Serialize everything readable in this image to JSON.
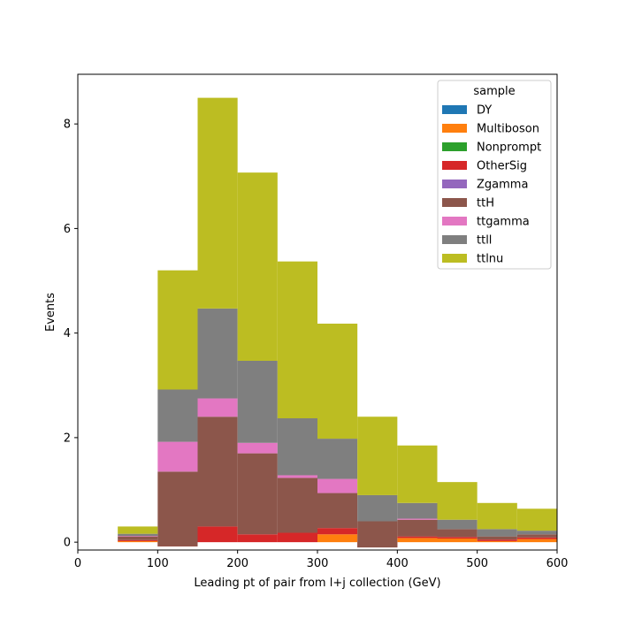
{
  "chart_data": {
    "type": "bar",
    "stacked": true,
    "histogram": true,
    "xlabel": "Leading pt of pair from l+j collection (GeV)",
    "ylabel": "Events",
    "xlim": [
      0,
      600
    ],
    "ylim": [
      -0.15,
      8.95
    ],
    "x_ticks": [
      0,
      100,
      200,
      300,
      400,
      500,
      600
    ],
    "y_ticks": [
      0,
      2,
      4,
      6,
      8
    ],
    "bin_edges": [
      50,
      100,
      150,
      200,
      250,
      300,
      350,
      400,
      450,
      500,
      550,
      600
    ],
    "legend": {
      "title": "sample",
      "placement": "top-right"
    },
    "series": [
      {
        "name": "DY",
        "color": "#1f77b4",
        "values": [
          0,
          0,
          0,
          0,
          0,
          0,
          0,
          0,
          0,
          0,
          0
        ]
      },
      {
        "name": "Multiboson",
        "color": "#ff7f0e",
        "values": [
          0.02,
          0.0,
          0.0,
          0.0,
          0.0,
          0.15,
          0.0,
          0.08,
          0.07,
          0.02,
          0.06
        ]
      },
      {
        "name": "Nonprompt",
        "color": "#2ca02c",
        "values": [
          0,
          0,
          0,
          0,
          0,
          0,
          0,
          0,
          0,
          0,
          0
        ]
      },
      {
        "name": "OtherSig",
        "color": "#d62728",
        "values": [
          0.02,
          -0.08,
          0.3,
          0.15,
          0.18,
          0.12,
          -0.1,
          0.03,
          0.03,
          0.03,
          0.03
        ]
      },
      {
        "name": "Zgamma",
        "color": "#9467bd",
        "values": [
          0,
          0,
          0,
          0,
          0,
          0,
          0,
          0,
          0,
          0,
          0
        ]
      },
      {
        "name": "ttH",
        "color": "#8c564b",
        "values": [
          0.07,
          1.43,
          2.1,
          1.55,
          1.05,
          0.67,
          0.5,
          0.32,
          0.15,
          0.06,
          0.06
        ]
      },
      {
        "name": "ttgamma",
        "color": "#e377c2",
        "values": [
          0.01,
          0.57,
          0.35,
          0.2,
          0.05,
          0.27,
          0.0,
          0.02,
          0.0,
          0.0,
          0.0
        ]
      },
      {
        "name": "ttll",
        "color": "#7f7f7f",
        "values": [
          0.04,
          1.0,
          1.72,
          1.57,
          1.09,
          0.77,
          0.5,
          0.3,
          0.18,
          0.14,
          0.07
        ]
      },
      {
        "name": "ttlnu",
        "color": "#bcbd22",
        "values": [
          0.14,
          2.28,
          4.03,
          3.6,
          3.0,
          2.2,
          1.5,
          1.1,
          0.72,
          0.5,
          0.42
        ]
      }
    ]
  }
}
